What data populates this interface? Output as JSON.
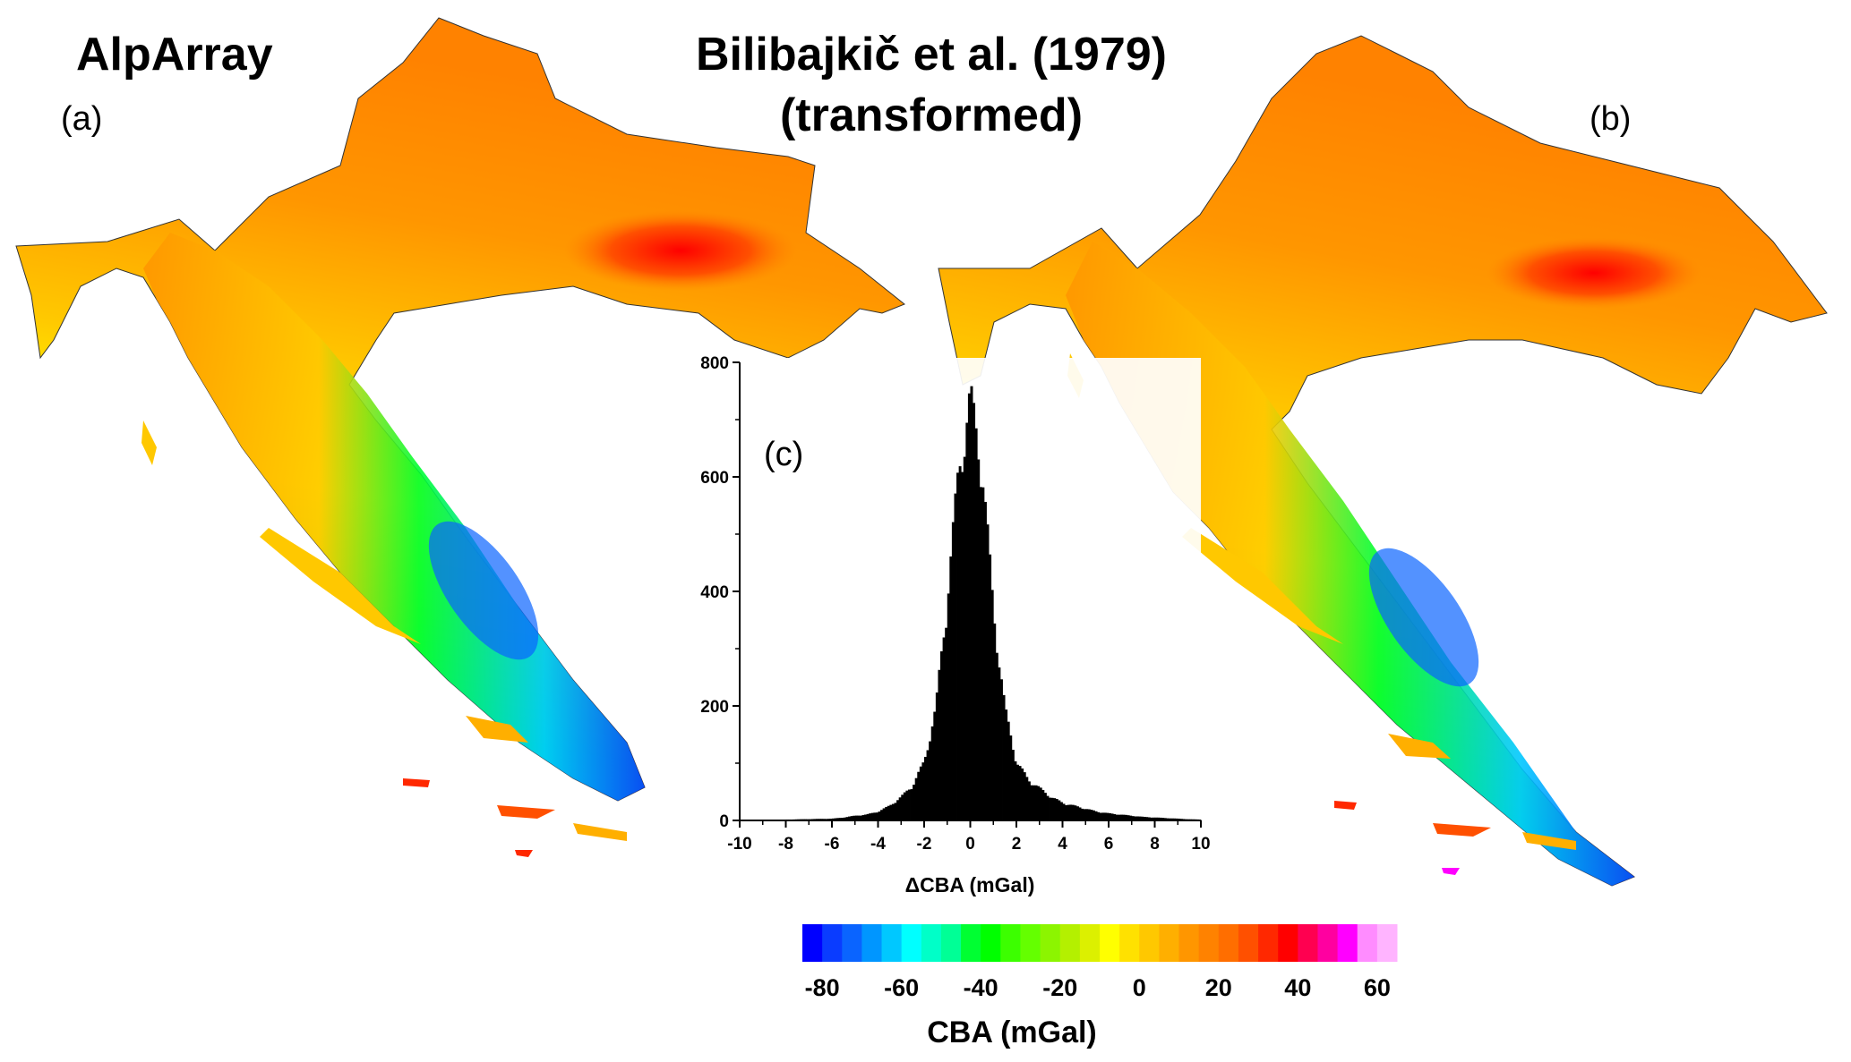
{
  "titles": {
    "left": "AlpArray",
    "middle_line1": "Bilibajkič et al. (1979)",
    "middle_line2": "(transformed)"
  },
  "panels": {
    "a": "(a)",
    "b": "(b)",
    "c": "(c)"
  },
  "chart_data": {
    "type": "bar",
    "xlabel": "ΔCBA (mGal)",
    "xlim": [
      -10,
      10
    ],
    "ylim": [
      0,
      800
    ],
    "xticks": [
      "-10",
      "-8",
      "-6",
      "-4",
      "-2",
      "0",
      "2",
      "4",
      "6",
      "8",
      "10"
    ],
    "yticks": [
      "0",
      "200",
      "400",
      "600",
      "800"
    ],
    "bin_width": 0.1,
    "x": [
      -6.0,
      -5.5,
      -5.0,
      -4.5,
      -4.0,
      -3.5,
      -3.0,
      -2.5,
      -2.0,
      -1.5,
      -1.0,
      -0.5,
      0.0,
      0.5,
      1.0,
      1.5,
      2.0,
      2.5,
      3.0,
      3.5,
      4.0,
      4.5,
      5.0,
      5.5,
      6.0,
      6.5,
      7.0,
      7.5,
      8.0,
      8.5,
      9.0,
      9.5
    ],
    "values": [
      3,
      5,
      8,
      10,
      15,
      25,
      40,
      60,
      100,
      190,
      380,
      600,
      720,
      610,
      360,
      190,
      100,
      70,
      55,
      40,
      30,
      25,
      20,
      15,
      12,
      10,
      8,
      6,
      5,
      4,
      3,
      2
    ]
  },
  "colorbar": {
    "label": "CBA (mGal)",
    "ticks": [
      "-80",
      "-60",
      "-40",
      "-20",
      "0",
      "20",
      "40",
      "60"
    ],
    "range": [
      -85,
      65
    ],
    "step": 5,
    "colors": [
      "#0000ff",
      "#0a3cff",
      "#0a64ff",
      "#0096ff",
      "#00c8ff",
      "#00ffff",
      "#00ffc8",
      "#00ff96",
      "#00ff32",
      "#00ff00",
      "#3cff00",
      "#64ff00",
      "#8cf500",
      "#b4f000",
      "#dcf000",
      "#ffff00",
      "#ffe100",
      "#ffc800",
      "#ffaf00",
      "#ff9600",
      "#ff8200",
      "#ff6e00",
      "#ff5000",
      "#ff2800",
      "#ff0000",
      "#ff0050",
      "#ff00a0",
      "#ff00ff",
      "#ff8cff",
      "#ffb4ff"
    ]
  }
}
